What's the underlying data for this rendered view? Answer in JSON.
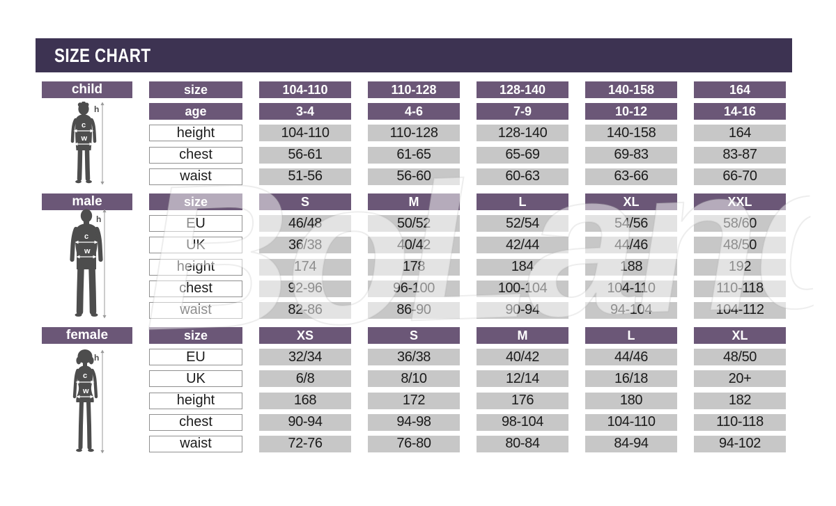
{
  "title": "SIZE CHART",
  "watermark_text": "BoLand",
  "annotations": {
    "height_letter": "h",
    "chest_letter": "c",
    "waist_letter": "w"
  },
  "colors": {
    "banner": "#3d3352",
    "header_purple": "#6b5777",
    "cell_gray": "#c7c7c7",
    "silhouette": "#4d4d4d",
    "box_border": "#8f8f8f"
  },
  "sections": [
    {
      "id": "child",
      "label": "child",
      "col_header_label": "size",
      "col_headers": [
        "104-110",
        "110-128",
        "128-140",
        "140-158",
        "164"
      ],
      "rows": [
        {
          "label": "age",
          "style": "header",
          "values": [
            "3-4",
            "4-6",
            "7-9",
            "10-12",
            "14-16"
          ]
        },
        {
          "label": "height",
          "style": "plain",
          "values": [
            "104-110",
            "110-128",
            "128-140",
            "140-158",
            "164"
          ]
        },
        {
          "label": "chest",
          "style": "plain",
          "values": [
            "56-61",
            "61-65",
            "65-69",
            "69-83",
            "83-87"
          ]
        },
        {
          "label": "waist",
          "style": "plain",
          "values": [
            "51-56",
            "56-60",
            "60-63",
            "63-66",
            "66-70"
          ]
        }
      ]
    },
    {
      "id": "male",
      "label": "male",
      "col_header_label": "size",
      "col_headers": [
        "S",
        "M",
        "L",
        "XL",
        "XXL"
      ],
      "rows": [
        {
          "label": "EU",
          "style": "plain",
          "values": [
            "46/48",
            "50/52",
            "52/54",
            "54/56",
            "58/60"
          ]
        },
        {
          "label": "UK",
          "style": "plain",
          "values": [
            "36/38",
            "40/42",
            "42/44",
            "44/46",
            "48/50"
          ]
        },
        {
          "label": "height",
          "style": "plain",
          "values": [
            "174",
            "178",
            "184",
            "188",
            "192"
          ]
        },
        {
          "label": "chest",
          "style": "plain",
          "values": [
            "92-96",
            "96-100",
            "100-104",
            "104-110",
            "110-118"
          ]
        },
        {
          "label": "waist",
          "style": "plain",
          "values": [
            "82-86",
            "86-90",
            "90-94",
            "94-104",
            "104-112"
          ]
        }
      ]
    },
    {
      "id": "female",
      "label": "female",
      "col_header_label": "size",
      "col_headers": [
        "XS",
        "S",
        "M",
        "L",
        "XL"
      ],
      "rows": [
        {
          "label": "EU",
          "style": "plain",
          "values": [
            "32/34",
            "36/38",
            "40/42",
            "44/46",
            "48/50"
          ]
        },
        {
          "label": "UK",
          "style": "plain",
          "values": [
            "6/8",
            "8/10",
            "12/14",
            "16/18",
            "20+"
          ]
        },
        {
          "label": "height",
          "style": "plain",
          "values": [
            "168",
            "172",
            "176",
            "180",
            "182"
          ]
        },
        {
          "label": "chest",
          "style": "plain",
          "values": [
            "90-94",
            "94-98",
            "98-104",
            "104-110",
            "110-118"
          ]
        },
        {
          "label": "waist",
          "style": "plain",
          "values": [
            "72-76",
            "76-80",
            "80-84",
            "84-94",
            "94-102"
          ]
        }
      ]
    }
  ],
  "chart_data": [
    {
      "type": "table",
      "title": "child",
      "columns": [
        "size",
        "104-110",
        "110-128",
        "128-140",
        "140-158",
        "164"
      ],
      "rows": [
        [
          "age",
          "3-4",
          "4-6",
          "7-9",
          "10-12",
          "14-16"
        ],
        [
          "height",
          "104-110",
          "110-128",
          "128-140",
          "140-158",
          "164"
        ],
        [
          "chest",
          "56-61",
          "61-65",
          "65-69",
          "69-83",
          "83-87"
        ],
        [
          "waist",
          "51-56",
          "56-60",
          "60-63",
          "63-66",
          "66-70"
        ]
      ]
    },
    {
      "type": "table",
      "title": "male",
      "columns": [
        "size",
        "S",
        "M",
        "L",
        "XL",
        "XXL"
      ],
      "rows": [
        [
          "EU",
          "46/48",
          "50/52",
          "52/54",
          "54/56",
          "58/60"
        ],
        [
          "UK",
          "36/38",
          "40/42",
          "42/44",
          "44/46",
          "48/50"
        ],
        [
          "height",
          "174",
          "178",
          "184",
          "188",
          "192"
        ],
        [
          "chest",
          "92-96",
          "96-100",
          "100-104",
          "104-110",
          "110-118"
        ],
        [
          "waist",
          "82-86",
          "86-90",
          "90-94",
          "94-104",
          "104-112"
        ]
      ]
    },
    {
      "type": "table",
      "title": "female",
      "columns": [
        "size",
        "XS",
        "S",
        "M",
        "L",
        "XL"
      ],
      "rows": [
        [
          "EU",
          "32/34",
          "36/38",
          "40/42",
          "44/46",
          "48/50"
        ],
        [
          "UK",
          "6/8",
          "8/10",
          "12/14",
          "16/18",
          "20+"
        ],
        [
          "height",
          "168",
          "172",
          "176",
          "180",
          "182"
        ],
        [
          "chest",
          "90-94",
          "94-98",
          "98-104",
          "104-110",
          "110-118"
        ],
        [
          "waist",
          "72-76",
          "76-80",
          "80-84",
          "84-94",
          "94-102"
        ]
      ]
    }
  ]
}
